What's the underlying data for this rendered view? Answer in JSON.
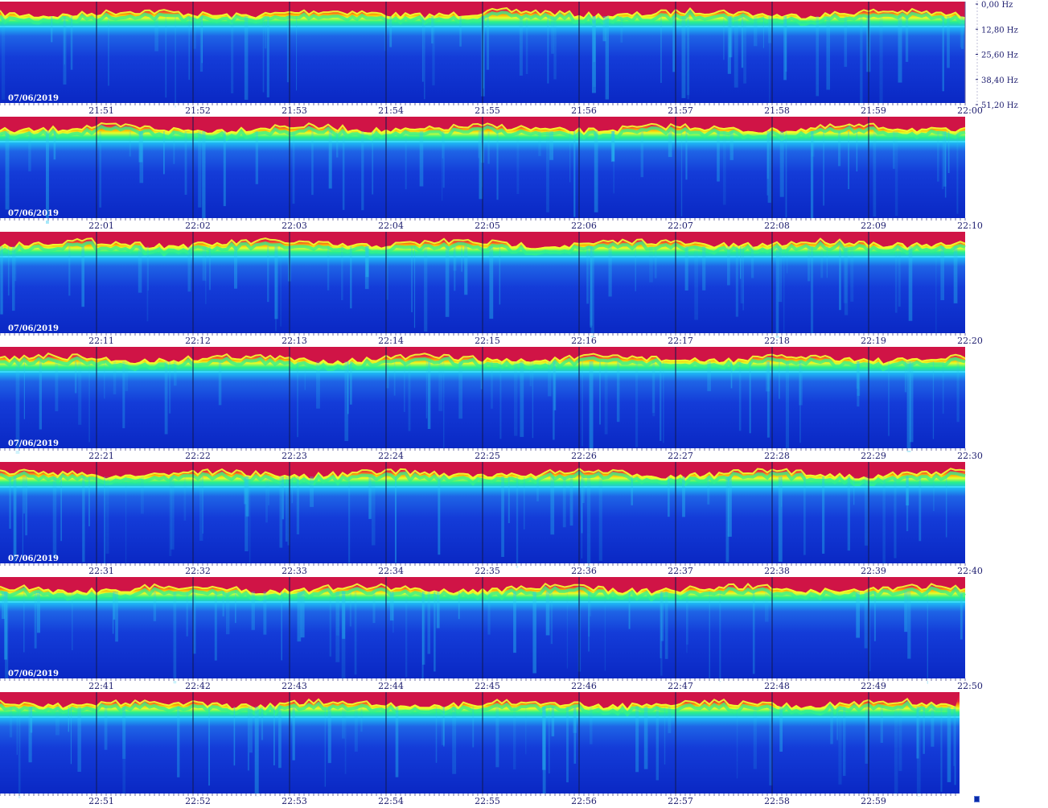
{
  "chart_data": {
    "type": "heatmap",
    "title": "",
    "date": "07/06/2019",
    "frequency_axis": {
      "unit": "Hz",
      "range": [
        0,
        51.2
      ],
      "tick_labels": [
        "0,00 Hz",
        "12,80 Hz",
        "25,60 Hz",
        "38,40 Hz",
        "51,20 Hz"
      ]
    },
    "time_axis": {
      "unit": "minute",
      "segments_per_row": 10
    },
    "colormap": [
      "#0a1ec8",
      "#1e5af0",
      "#00c8ff",
      "#00ff96",
      "#ffff00",
      "#ff8c00",
      "#dc1446"
    ],
    "rows": [
      {
        "date": "07/06/2019",
        "ticks": [
          "21:51",
          "21:52",
          "21:53",
          "21:54",
          "21:55",
          "21:56",
          "21:57",
          "21:58",
          "21:59",
          "22:00"
        ]
      },
      {
        "date": "07/06/2019",
        "ticks": [
          "22:01",
          "22:02",
          "22:03",
          "22:04",
          "22:05",
          "22:06",
          "22:07",
          "22:08",
          "22:09",
          "22:10"
        ]
      },
      {
        "date": "07/06/2019",
        "ticks": [
          "22:11",
          "22:12",
          "22:13",
          "22:14",
          "22:15",
          "22:16",
          "22:17",
          "22:18",
          "22:19",
          "22:20"
        ]
      },
      {
        "date": "07/06/2019",
        "ticks": [
          "22:21",
          "22:22",
          "22:23",
          "22:24",
          "22:25",
          "22:26",
          "22:27",
          "22:28",
          "22:29",
          "22:30"
        ]
      },
      {
        "date": "07/06/2019",
        "ticks": [
          "22:31",
          "22:32",
          "22:33",
          "22:34",
          "22:35",
          "22:36",
          "22:37",
          "22:38",
          "22:39",
          "22:40"
        ]
      },
      {
        "date": "07/06/2019",
        "ticks": [
          "22:41",
          "22:42",
          "22:43",
          "22:44",
          "22:45",
          "22:46",
          "22:47",
          "22:48",
          "22:49",
          "22:50"
        ]
      },
      {
        "date": "",
        "ticks": [
          "22:51",
          "22:52",
          "22:53",
          "22:54",
          "22:55",
          "22:56",
          "22:57",
          "22:58",
          "22:59",
          ""
        ]
      }
    ]
  }
}
